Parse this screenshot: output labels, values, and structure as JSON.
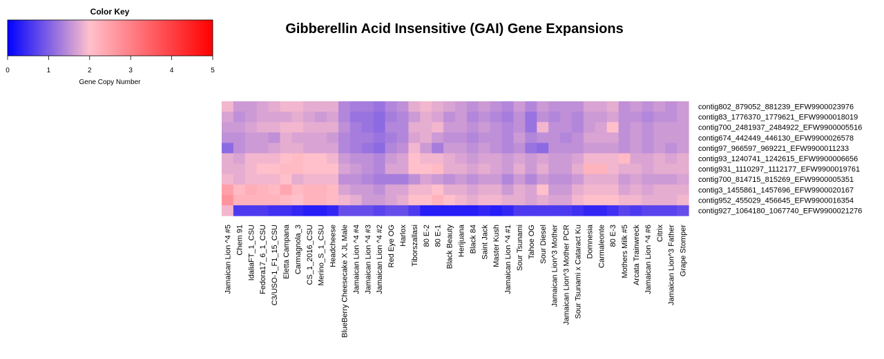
{
  "chart_data": {
    "type": "heatmap",
    "title": "Gibberellin Acid Insensitive (GAI) Gene Expansions",
    "color_key": {
      "title": "Color Key",
      "xlabel": "Gene Copy Number",
      "ticks": [
        "0",
        "1",
        "2",
        "3",
        "4",
        "5"
      ],
      "range": [
        0,
        5
      ],
      "colors": {
        "low": "#0000ff",
        "mid": "#ffc0cb",
        "high": "#ff0000"
      }
    },
    "columns": [
      "Jamaican Lion ^4 #5",
      "Chem 91",
      "IdaliaFT_1_CSU",
      "Fedora17_6_1_CSU",
      "C3/USO-1_F1_15_CSU",
      "Eletta Campana",
      "Carmagnola_3",
      "CS_1_2016_CSU",
      "Merino_S_1_CSU",
      "Headcheese",
      "BlueBerry Cheesecake X JL Male",
      "Jamaican Lion ^4 #4",
      "Jamaican Lion ^4 #3",
      "Jamaican Lion ^4 #2",
      "Red Eye OG",
      "Harlox",
      "Tiborszallasi",
      "80 E-2",
      "80 E-1",
      "Black Beauty",
      "Herijuana",
      "Black 84",
      "Saint Jack",
      "Master Kush",
      "Jamaican Lion ^4 #1",
      "Sour Tsunami",
      "Tahoe OG",
      "Sour Diesel",
      "Jamaican Lion^3 Mother",
      "Jamaican Lion^3 Mother PCR",
      "Sour Tsunami x Cataract Ku",
      "Domnesia",
      "Carmaleonte",
      "80 E-3",
      "Mothers Milk #5",
      "Arcata Trainwreck",
      "Jamaican Lion ^4 #6",
      "Citrix",
      "Jamaican Lion^3 Father",
      "Grape Stomper"
    ],
    "rows": [
      "contig802_879052_881239_EFW9900023976",
      "contig83_1776370_1779621_EFW9900018019",
      "contig700_2481937_2484922_EFW9900005516",
      "contig674_442449_446130_EFW9900026578",
      "contig97_966597_969221_EFW9900011233",
      "contig93_1240741_1242615_EFW9900006656",
      "contig931_1110297_1112177_EFW9900019761",
      "contig700_814715_815269_EFW9900005351",
      "contig3_1455861_1457696_EFW9900020167",
      "contig952_455029_456645_EFW9900016354",
      "contig927_1064180_1067740_EFW9900021276"
    ],
    "values": [
      [
        1.9,
        1.6,
        1.6,
        1.7,
        1.8,
        1.9,
        1.9,
        1.8,
        1.8,
        1.8,
        1.4,
        1.3,
        1.3,
        1.2,
        1.4,
        1.5,
        1.8,
        1.9,
        1.8,
        1.7,
        1.6,
        1.5,
        1.6,
        1.5,
        1.4,
        1.6,
        1.4,
        1.6,
        1.5,
        1.5,
        1.5,
        1.7,
        1.7,
        1.8,
        1.5,
        1.6,
        1.5,
        1.6,
        1.5,
        1.6
      ],
      [
        1.7,
        1.5,
        1.6,
        1.7,
        1.7,
        1.7,
        1.8,
        1.7,
        1.6,
        1.7,
        1.4,
        1.2,
        1.2,
        1.1,
        1.3,
        1.4,
        1.6,
        1.8,
        1.7,
        1.5,
        1.6,
        1.4,
        1.5,
        1.4,
        1.3,
        1.5,
        1.2,
        1.5,
        1.4,
        1.5,
        1.4,
        1.6,
        1.6,
        1.7,
        1.5,
        1.5,
        1.4,
        1.5,
        1.5,
        1.6
      ],
      [
        1.6,
        1.6,
        1.7,
        1.8,
        1.8,
        1.9,
        1.9,
        1.8,
        1.8,
        1.8,
        1.5,
        1.3,
        1.2,
        1.1,
        1.4,
        1.4,
        1.8,
        1.8,
        1.9,
        1.6,
        1.6,
        1.5,
        1.6,
        1.5,
        1.4,
        1.5,
        1.2,
        1.9,
        1.5,
        1.5,
        1.4,
        1.6,
        1.7,
        2.0,
        1.5,
        1.6,
        1.5,
        1.6,
        1.6,
        1.6
      ],
      [
        1.5,
        1.5,
        1.6,
        1.6,
        1.5,
        1.8,
        1.7,
        1.7,
        1.7,
        1.6,
        1.4,
        1.3,
        1.3,
        1.2,
        1.3,
        1.4,
        1.7,
        1.8,
        1.6,
        1.5,
        1.5,
        1.4,
        1.5,
        1.5,
        1.4,
        1.6,
        1.4,
        1.5,
        1.5,
        1.4,
        1.5,
        1.7,
        1.7,
        1.7,
        1.5,
        1.6,
        1.5,
        1.6,
        1.6,
        1.6
      ],
      [
        1.1,
        1.5,
        1.6,
        1.6,
        1.7,
        1.8,
        1.8,
        1.7,
        1.7,
        1.7,
        1.4,
        1.3,
        1.2,
        1.1,
        1.4,
        1.5,
        1.9,
        1.6,
        1.3,
        1.6,
        1.6,
        1.5,
        1.6,
        1.5,
        1.4,
        1.5,
        1.2,
        1.1,
        1.5,
        1.5,
        1.5,
        1.6,
        1.6,
        1.6,
        1.5,
        1.6,
        1.5,
        1.6,
        1.5,
        1.6
      ],
      [
        1.8,
        1.7,
        1.9,
        1.9,
        1.9,
        2.0,
        2.1,
        2.0,
        2.0,
        1.9,
        1.6,
        1.5,
        1.5,
        1.4,
        1.6,
        1.7,
        2.0,
        1.9,
        1.9,
        1.8,
        1.7,
        1.6,
        1.7,
        1.7,
        1.6,
        1.7,
        1.6,
        1.7,
        1.6,
        1.6,
        1.7,
        1.9,
        1.9,
        1.9,
        2.1,
        1.7,
        1.7,
        1.8,
        1.7,
        1.8
      ],
      [
        1.8,
        1.8,
        1.9,
        2.0,
        2.0,
        2.1,
        2.1,
        2.0,
        2.0,
        2.0,
        1.7,
        1.6,
        1.5,
        1.4,
        1.7,
        1.7,
        2.0,
        2.0,
        2.1,
        1.8,
        1.8,
        1.7,
        1.8,
        1.7,
        1.6,
        1.8,
        1.6,
        1.8,
        1.6,
        1.6,
        1.8,
        2.2,
        2.2,
        1.9,
        1.8,
        1.8,
        1.7,
        1.8,
        1.8,
        1.8
      ],
      [
        1.9,
        1.8,
        1.9,
        1.9,
        1.9,
        2.0,
        1.8,
        1.9,
        1.9,
        1.9,
        1.5,
        1.5,
        1.4,
        1.3,
        1.3,
        1.3,
        1.5,
        1.7,
        1.6,
        1.5,
        1.6,
        1.5,
        1.6,
        1.6,
        1.4,
        1.6,
        1.4,
        1.6,
        1.5,
        1.5,
        1.6,
        1.8,
        1.8,
        1.8,
        1.6,
        1.7,
        1.6,
        1.6,
        1.6,
        1.7
      ],
      [
        2.5,
        2.1,
        2.3,
        2.2,
        2.1,
        2.4,
        2.1,
        2.2,
        2.2,
        2.1,
        1.7,
        1.6,
        1.6,
        1.5,
        1.7,
        1.7,
        1.9,
        1.9,
        2.0,
        1.8,
        1.8,
        1.7,
        1.8,
        1.8,
        1.6,
        1.8,
        1.7,
        2.0,
        1.6,
        1.6,
        1.8,
        1.9,
        1.9,
        1.9,
        1.7,
        1.8,
        1.7,
        1.8,
        1.8,
        1.8
      ],
      [
        2.7,
        2.2,
        2.2,
        2.2,
        2.2,
        2.1,
        2.0,
        2.2,
        2.2,
        2.1,
        1.9,
        1.8,
        1.6,
        1.6,
        1.7,
        1.8,
        2.0,
        2.0,
        2.2,
        2.0,
        1.9,
        1.8,
        1.9,
        1.9,
        1.8,
        1.8,
        1.7,
        1.8,
        1.7,
        1.7,
        1.9,
        2.0,
        2.0,
        2.0,
        1.9,
        1.9,
        1.8,
        1.8,
        1.8,
        1.9
      ],
      [
        1.9,
        0.6,
        0.6,
        0.6,
        0.5,
        0.5,
        0.4,
        0.3,
        0.3,
        0.4,
        0.8,
        0.8,
        0.8,
        0.7,
        0.8,
        0.8,
        0.6,
        0.3,
        0.3,
        0.3,
        0.3,
        0.3,
        0.4,
        0.3,
        0.4,
        0.6,
        0.6,
        0.6,
        0.6,
        0.6,
        0.5,
        0.4,
        0.4,
        0.5,
        0.7,
        0.6,
        0.7,
        0.7,
        0.7,
        0.8
      ]
    ]
  }
}
